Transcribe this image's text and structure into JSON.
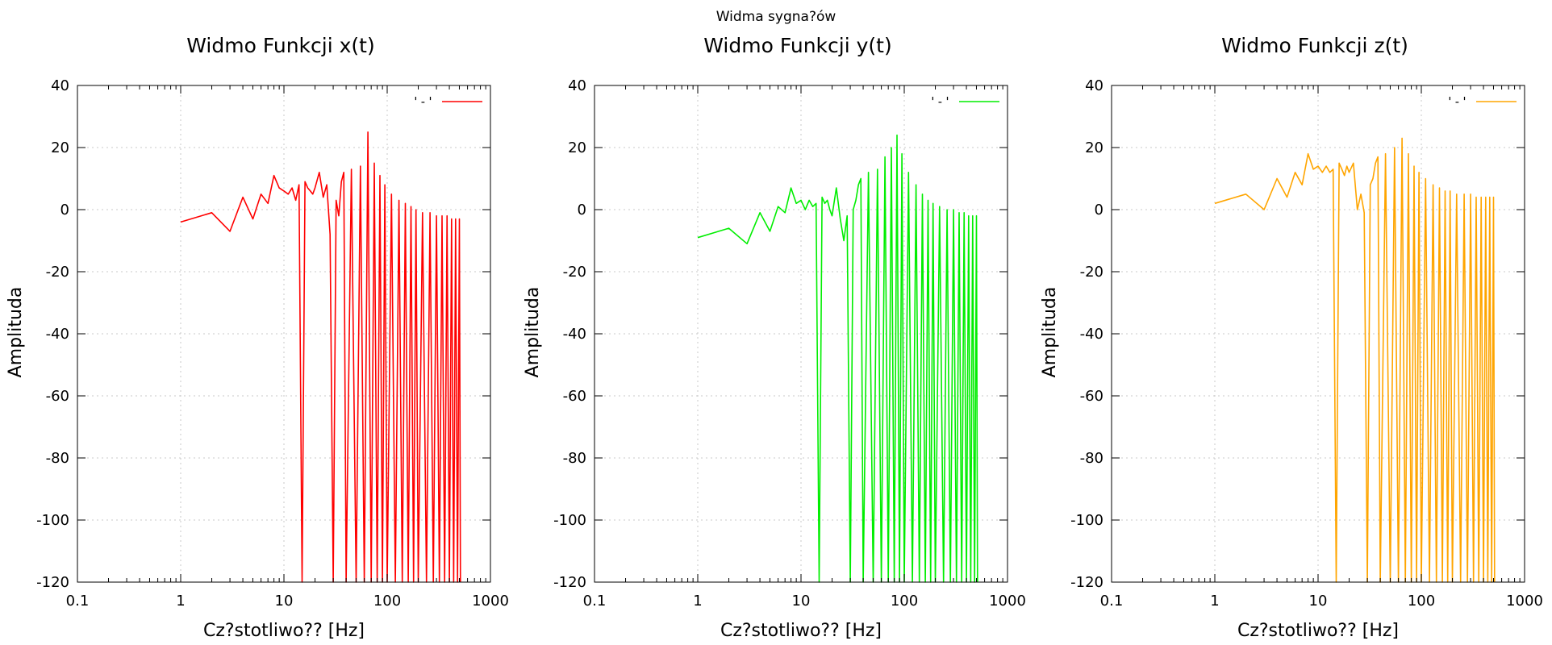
{
  "suptitle": "Widma sygna?ów",
  "chart_data": [
    {
      "type": "line",
      "title": "Widmo Funkcji x(t)",
      "xlabel": "Cz?stotliwo?? [Hz]",
      "ylabel": "Amplituda",
      "xscale": "log",
      "xlim": [
        0.1,
        1000
      ],
      "ylim": [
        -120,
        40
      ],
      "xticks": [
        0.1,
        1,
        10,
        100,
        1000
      ],
      "xtick_labels": [
        "0.1",
        "1",
        "10",
        "100",
        "1000"
      ],
      "yticks": [
        -120,
        -100,
        -80,
        -60,
        -40,
        -20,
        0,
        20,
        40
      ],
      "ytick_labels": [
        "-120",
        "-100",
        "-80",
        "-60",
        "-40",
        "-20",
        "0",
        "20",
        "40"
      ],
      "grid": true,
      "legend": "top-right",
      "series": [
        {
          "name": "'-'",
          "color": "#ff0000",
          "x": [
            1,
            2,
            3,
            4,
            5,
            6,
            7,
            8,
            9,
            10,
            11,
            12,
            13,
            14,
            15,
            16,
            17,
            18,
            19,
            20,
            22,
            24,
            26,
            28,
            30,
            32,
            34,
            36,
            38,
            40,
            45,
            50,
            55,
            60,
            65,
            70,
            75,
            80,
            85,
            90,
            95,
            100,
            110,
            120,
            130,
            140,
            150,
            160,
            170,
            180,
            190,
            200,
            220,
            240,
            260,
            280,
            300,
            320,
            340,
            360,
            380,
            400,
            420,
            440,
            460,
            480,
            500,
            512
          ],
          "y": [
            -4,
            -1,
            -7,
            4,
            -3,
            5,
            2,
            11,
            7,
            6,
            5,
            7,
            3,
            8,
            -120,
            9,
            7,
            6,
            5,
            7,
            12,
            4,
            8,
            -8,
            -120,
            3,
            -2,
            9,
            12,
            -120,
            13,
            -120,
            14,
            -120,
            25,
            -120,
            15,
            -120,
            11,
            -120,
            8,
            -120,
            5,
            -120,
            3,
            -120,
            2,
            -120,
            1,
            -120,
            0,
            -120,
            -1,
            -120,
            -1,
            -120,
            -2,
            -120,
            -2,
            -120,
            -2,
            -120,
            -3,
            -120,
            -3,
            -120,
            -3,
            -120
          ]
        }
      ]
    },
    {
      "type": "line",
      "title": "Widmo Funkcji y(t)",
      "xlabel": "Cz?stotliwo?? [Hz]",
      "ylabel": "Amplituda",
      "xscale": "log",
      "xlim": [
        0.1,
        1000
      ],
      "ylim": [
        -120,
        40
      ],
      "xticks": [
        0.1,
        1,
        10,
        100,
        1000
      ],
      "xtick_labels": [
        "0.1",
        "1",
        "10",
        "100",
        "1000"
      ],
      "yticks": [
        -120,
        -100,
        -80,
        -60,
        -40,
        -20,
        0,
        20,
        40
      ],
      "ytick_labels": [
        "-120",
        "-100",
        "-80",
        "-60",
        "-40",
        "-20",
        "0",
        "20",
        "40"
      ],
      "grid": true,
      "legend": "top-right",
      "series": [
        {
          "name": "'-'",
          "color": "#00ee00",
          "x": [
            1,
            2,
            3,
            4,
            5,
            6,
            7,
            8,
            9,
            10,
            11,
            12,
            13,
            14,
            15,
            16,
            17,
            18,
            19,
            20,
            22,
            24,
            26,
            28,
            30,
            32,
            34,
            36,
            38,
            40,
            45,
            50,
            55,
            60,
            65,
            70,
            75,
            80,
            85,
            90,
            95,
            100,
            110,
            120,
            130,
            140,
            150,
            160,
            170,
            180,
            190,
            200,
            220,
            240,
            260,
            280,
            300,
            320,
            340,
            360,
            380,
            400,
            420,
            440,
            460,
            480,
            500,
            512
          ],
          "y": [
            -9,
            -6,
            -11,
            -1,
            -7,
            1,
            -1,
            7,
            2,
            3,
            0,
            3,
            1,
            2,
            -120,
            4,
            2,
            3,
            0,
            -2,
            7,
            -3,
            -10,
            -2,
            -120,
            0,
            3,
            8,
            10,
            -120,
            12,
            -120,
            13,
            -120,
            17,
            -120,
            20,
            -120,
            24,
            -120,
            18,
            -120,
            12,
            -120,
            8,
            -120,
            5,
            -120,
            3,
            -120,
            2,
            -120,
            1,
            -120,
            0,
            -120,
            0,
            -120,
            -1,
            -120,
            -1,
            -120,
            -2,
            -120,
            -2,
            -120,
            -2,
            -120
          ]
        }
      ]
    },
    {
      "type": "line",
      "title": "Widmo Funkcji z(t)",
      "xlabel": "Cz?stotliwo?? [Hz]",
      "ylabel": "Amplituda",
      "xscale": "log",
      "xlim": [
        0.1,
        1000
      ],
      "ylim": [
        -120,
        40
      ],
      "xticks": [
        0.1,
        1,
        10,
        100,
        1000
      ],
      "xtick_labels": [
        "0.1",
        "1",
        "10",
        "100",
        "1000"
      ],
      "yticks": [
        -120,
        -100,
        -80,
        -60,
        -40,
        -20,
        0,
        20,
        40
      ],
      "ytick_labels": [
        "-120",
        "-100",
        "-80",
        "-60",
        "-40",
        "-20",
        "0",
        "20",
        "40"
      ],
      "grid": true,
      "legend": "top-right",
      "series": [
        {
          "name": "'-'",
          "color": "#ffa500",
          "x": [
            1,
            2,
            3,
            4,
            5,
            6,
            7,
            8,
            9,
            10,
            11,
            12,
            13,
            14,
            15,
            16,
            17,
            18,
            19,
            20,
            22,
            24,
            26,
            28,
            30,
            32,
            34,
            36,
            38,
            40,
            45,
            50,
            55,
            60,
            65,
            70,
            75,
            80,
            85,
            90,
            95,
            100,
            110,
            120,
            130,
            140,
            150,
            160,
            170,
            180,
            190,
            200,
            220,
            240,
            260,
            280,
            300,
            320,
            340,
            360,
            380,
            400,
            420,
            440,
            460,
            480,
            500,
            512
          ],
          "y": [
            2,
            5,
            0,
            10,
            4,
            12,
            8,
            18,
            13,
            14,
            12,
            14,
            12,
            13,
            -120,
            15,
            13,
            11,
            14,
            12,
            15,
            0,
            5,
            -1,
            -120,
            8,
            10,
            15,
            17,
            -120,
            18,
            -120,
            20,
            -120,
            23,
            -120,
            18,
            -120,
            14,
            -120,
            12,
            -120,
            10,
            -120,
            8,
            -120,
            7,
            -120,
            6,
            -120,
            6,
            -120,
            5,
            -120,
            5,
            -120,
            5,
            -120,
            4,
            -120,
            4,
            -120,
            4,
            -120,
            4,
            -120,
            4,
            -120
          ]
        }
      ]
    }
  ]
}
